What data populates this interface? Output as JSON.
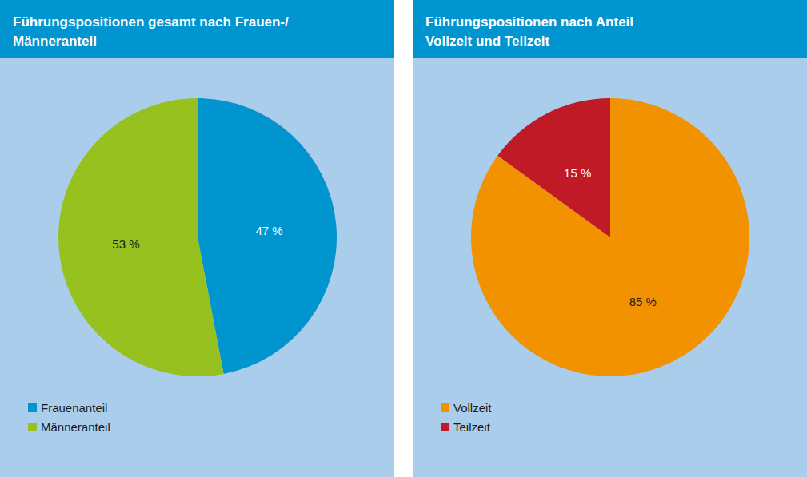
{
  "chart_data": [
    {
      "type": "pie",
      "title": "Führungspositionen gesamt nach Frauen-/\nMänneranteil",
      "categories": [
        "Frauenanteil",
        "Männeranteil"
      ],
      "values": [
        47,
        53
      ],
      "value_labels": [
        "47 %",
        "53 %"
      ],
      "colors": [
        "#0095cf",
        "#97c11f"
      ],
      "data_labels": true,
      "legend": "bottom-left"
    },
    {
      "type": "pie",
      "title": "Führungspositionen nach Anteil\nVollzeit und Teilzeit",
      "categories": [
        "Vollzeit",
        "Teilzeit"
      ],
      "values": [
        85,
        15
      ],
      "value_labels": [
        "85 %",
        "15 %"
      ],
      "colors": [
        "#f39200",
        "#c01a26"
      ],
      "data_labels": true,
      "legend": "bottom-left"
    }
  ]
}
